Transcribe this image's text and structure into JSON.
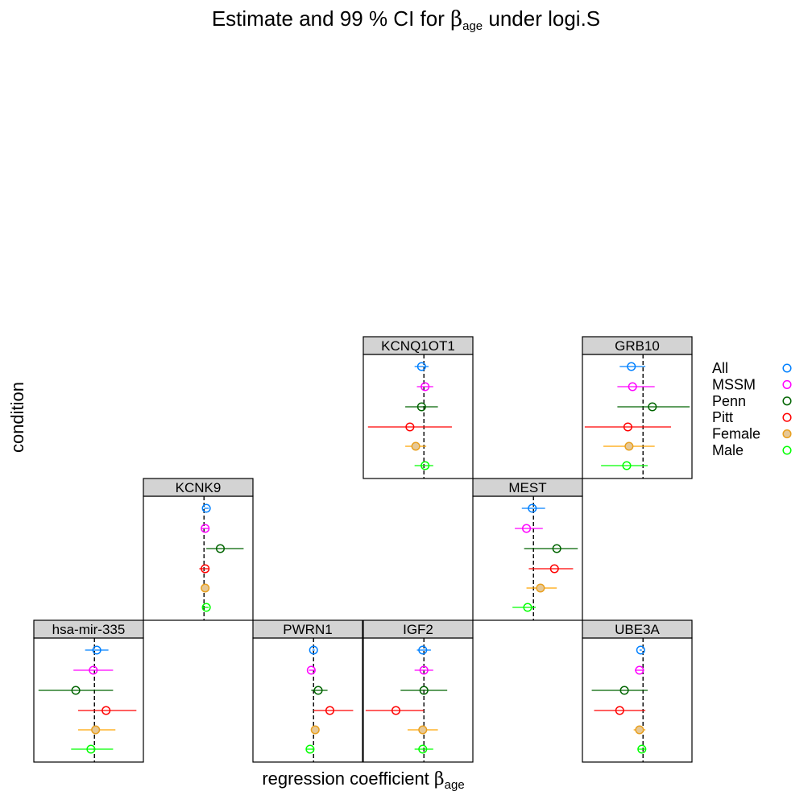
{
  "title": {
    "prefix": "Estimate and 99 % CI for ",
    "symbol": "β",
    "subscript": "age",
    "suffix": " under logi.S"
  },
  "xlabel": {
    "prefix": "regression coefficient ",
    "symbol": "β",
    "subscript": "age"
  },
  "ylabel": "condition",
  "colors": {
    "All": "#0080ff",
    "MSSM": "#ff00ff",
    "Penn": "#006400",
    "Pitt": "#ff0000",
    "Female": "#ffa500",
    "Male": "#00ff00",
    "strip_fill": "#d3d3d3",
    "female_point_fill": "#e6c896"
  },
  "chart_data": {
    "type": "dotplot-errorbar",
    "legend": [
      "All",
      "MSSM",
      "Penn",
      "Pitt",
      "Female",
      "Male"
    ],
    "legend_position": "right",
    "reference_line": "dashed vertical line per panel",
    "panels": [
      {
        "name": "hsa-mir-335",
        "est": [
          0.1,
          -0.05,
          -0.8,
          0.5,
          0.05,
          -0.15
        ],
        "lo": [
          -0.4,
          -0.9,
          -2.4,
          -0.7,
          -0.7,
          -1.0
        ],
        "hi": [
          0.6,
          0.8,
          0.8,
          1.8,
          0.9,
          0.8
        ],
        "ref": 0
      },
      {
        "name": "KCNK9",
        "est": [
          0.1,
          0.05,
          0.7,
          0.05,
          0.05,
          0.1
        ],
        "lo": [
          0.0,
          -0.1,
          0.1,
          -0.2,
          -0.1,
          -0.05
        ],
        "hi": [
          0.2,
          0.2,
          1.7,
          0.2,
          0.15,
          0.2
        ],
        "ref": 0
      },
      {
        "name": "PWRN1",
        "est": [
          0.0,
          -0.1,
          0.2,
          0.7,
          0.07,
          -0.15
        ],
        "lo": [
          -0.05,
          -0.2,
          -0.1,
          0.0,
          -0.1,
          -0.3
        ],
        "hi": [
          0.05,
          0.05,
          0.6,
          1.7,
          0.2,
          0.0
        ],
        "ref": 0
      },
      {
        "name": "IGF2",
        "est": [
          -0.05,
          0.0,
          0.0,
          -1.2,
          -0.05,
          -0.05
        ],
        "lo": [
          -0.3,
          -0.4,
          -1.0,
          -2.5,
          -0.7,
          -0.4
        ],
        "hi": [
          0.3,
          0.4,
          1.0,
          0.0,
          0.6,
          0.4
        ],
        "ref": 0
      },
      {
        "name": "KCNQ1OT1",
        "est": [
          -0.1,
          0.05,
          -0.1,
          -0.6,
          -0.35,
          0.05
        ],
        "lo": [
          -0.4,
          -0.3,
          -0.8,
          -2.4,
          -0.8,
          -0.4
        ],
        "hi": [
          0.2,
          0.4,
          0.6,
          1.2,
          0.1,
          0.4
        ],
        "ref": 0
      },
      {
        "name": "MEST",
        "est": [
          -0.05,
          -0.3,
          1.0,
          0.9,
          0.3,
          -0.25
        ],
        "lo": [
          -0.5,
          -0.8,
          -0.4,
          -0.2,
          -0.3,
          -0.9
        ],
        "hi": [
          0.5,
          0.4,
          1.9,
          1.7,
          1.0,
          0.1
        ],
        "ref": 0
      },
      {
        "name": "GRB10",
        "est": [
          -0.5,
          -0.45,
          0.4,
          -0.65,
          -0.6,
          -0.7
        ],
        "lo": [
          -1.0,
          -1.1,
          -1.1,
          -2.5,
          -1.7,
          -1.8
        ],
        "hi": [
          0.1,
          0.5,
          2.0,
          1.2,
          0.5,
          0.2
        ],
        "ref": 0
      },
      {
        "name": "UBE3A",
        "est": [
          -0.1,
          -0.15,
          -0.8,
          -1.0,
          -0.15,
          -0.05
        ],
        "lo": [
          -0.15,
          -0.35,
          -2.2,
          -2.1,
          -0.4,
          -0.2
        ],
        "hi": [
          -0.05,
          0.05,
          0.2,
          0.1,
          0.1,
          0.1
        ],
        "ref": 0
      }
    ]
  }
}
